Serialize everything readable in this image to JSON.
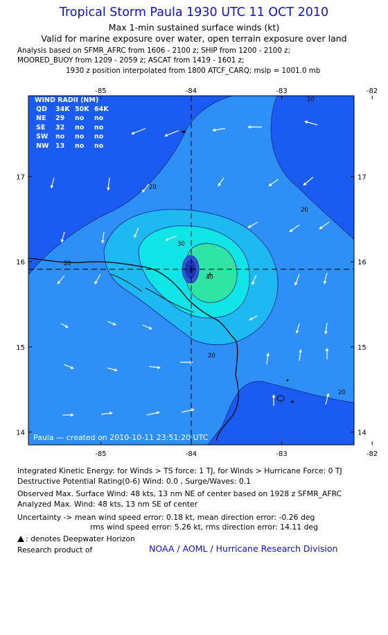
{
  "header": {
    "title": "Tropical Storm Paula 1930 UTC 11 OCT 2010",
    "subtitle_1": "Max 1-min sustained surface winds (kt)",
    "subtitle_2": "Valid for marine exposure over water, open terrain exposure over land",
    "analysis_lines": [
      "Analysis based on SFMR_AFRC from 1606 - 2100 z; SHIP from 1200 - 2100 z;",
      "MOORED_BUOY from 1209 - 2059 z; ASCAT from 1419 - 1601 z;",
      "1930 z position interpolated from 1800 ATCF_CARQ; mslp = 1001.0 mb"
    ]
  },
  "map": {
    "lon_ticks": [
      "-85",
      "-84",
      "-83",
      "-82"
    ],
    "lat_ticks": [
      "17",
      "16",
      "15",
      "14"
    ],
    "lon_range": [
      -85.8,
      -82.2
    ],
    "lat_range": [
      13.85,
      17.95
    ],
    "center": {
      "lon": -83.95,
      "lat": 15.85
    },
    "credit": "Paula — created on 2010-10-11 23:51:20 UTC",
    "contour_labels": [
      "20",
      "20",
      "20",
      "20",
      "20",
      "20",
      "30",
      "40"
    ],
    "colors": {
      "background": "#1a5cf2",
      "band_20": "#2e8ff6",
      "band_30": "#1eb9f2",
      "band_40": "#10e4e6",
      "core": "#2ee5a6",
      "land_line": "#000000",
      "vector": "#ffffff"
    },
    "wind_radii": {
      "title": "WIND RADII (NM)",
      "header": [
        "QD",
        "34K",
        "50K",
        "64K"
      ],
      "rows": [
        [
          "NE",
          "29",
          "no",
          "no"
        ],
        [
          "SE",
          "32",
          "no",
          "no"
        ],
        [
          "SW",
          "no",
          "no",
          "no"
        ],
        [
          "NW",
          "13",
          "no",
          "no"
        ]
      ]
    }
  },
  "footer": {
    "ike": "Integrated Kinetic Energy:  for Winds > TS force: 1 TJ,  for Winds > Hurricane Force: 0 TJ",
    "dpr": "Destructive Potential Rating(0-6)   Wind: 0.0 , Surge/Waves: 0.1",
    "obs_max": "Observed Max. Surface Wind: 48 kts, 13 nm NE of center based on 1928 z SFMR_AFRC",
    "analyzed_max": "Analyzed Max. Wind: 48 kts, 13 nm SE of center",
    "uncert_1": "Uncertainty -> mean wind speed error: 0.18 kt,   mean direction error:  -0.26 deg",
    "uncert_2": "rms wind speed error: 5.26 kt,   rms direction error: 14.11 deg",
    "dwh_note": ": denotes Deepwater Horizon",
    "research": "Research product of",
    "noaa": "NOAA / AOML / Hurricane Research Division"
  }
}
